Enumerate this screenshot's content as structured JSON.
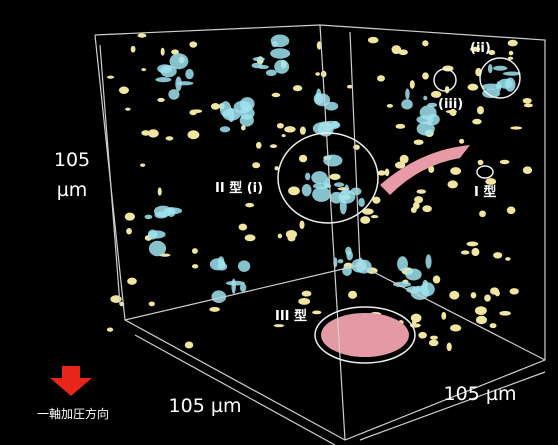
{
  "labels": {
    "left_size_value": "105",
    "left_size_unit": "µm",
    "bottom_size": "105 µm",
    "right_size": "105 µm",
    "type_ii_i": "II 型 (i)",
    "type_i": "I 型",
    "type_iii": "III 型",
    "region_ii": "(ii)",
    "region_iii": "(iii)",
    "direction": "一軸加圧方向"
  }
}
